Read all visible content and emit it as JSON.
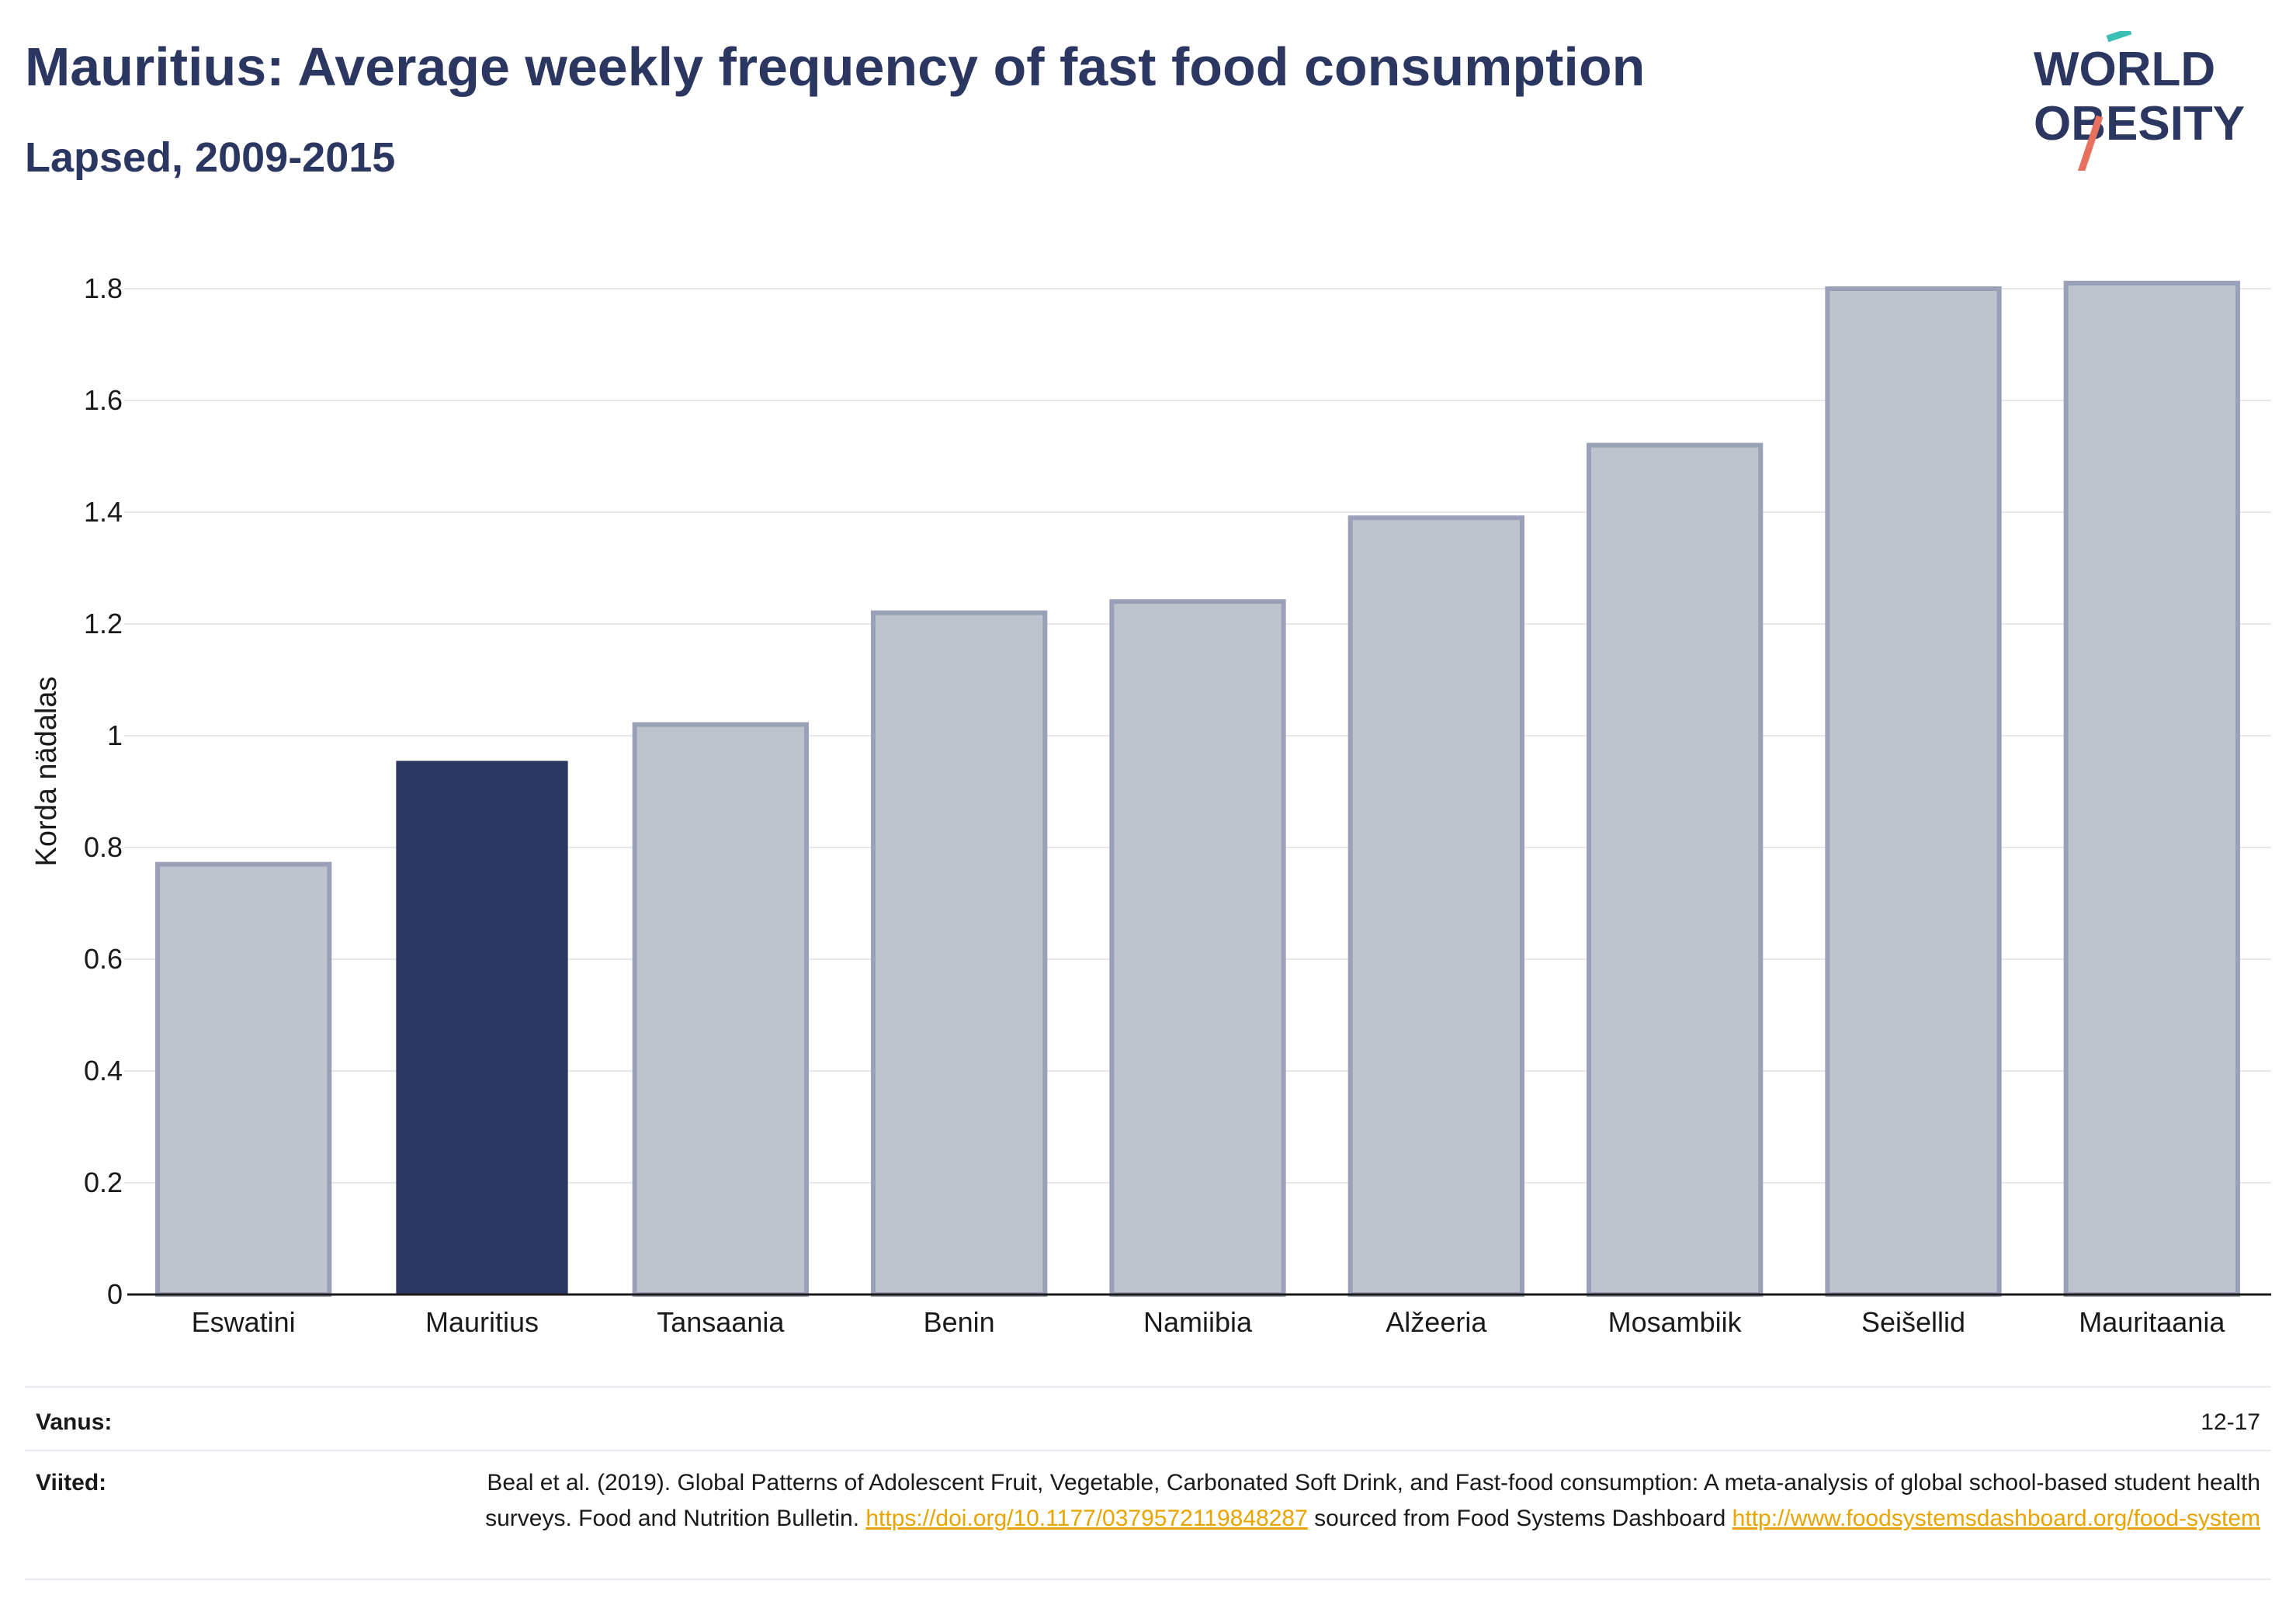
{
  "header": {
    "title": "Mauritius: Average weekly frequency of fast food consumption",
    "subtitle": "Lapsed, 2009-2015"
  },
  "logo": {
    "line1": "WORLD",
    "line2": "OBESITY",
    "accent_teal": "#3bbfb5",
    "accent_coral": "#e8705f"
  },
  "chart_data": {
    "type": "bar",
    "categories": [
      "Eswatini",
      "Mauritius",
      "Tansaania",
      "Benin",
      "Namiibia",
      "Alžeeria",
      "Mosambiik",
      "Seišellid",
      "Mauritaania"
    ],
    "values": [
      0.77,
      0.955,
      1.02,
      1.22,
      1.24,
      1.39,
      1.52,
      1.8,
      1.81
    ],
    "highlight": "Mauritius",
    "ylabel": "Korda nädalas",
    "xlabel": "",
    "ylim": [
      0,
      1.9
    ],
    "yticks": [
      0,
      0.2,
      0.4,
      0.6,
      0.8,
      1,
      1.2,
      1.4,
      1.6,
      1.8
    ],
    "ytick_labels": [
      "0",
      "0.2",
      "0.4",
      "0.6",
      "0.8",
      "1",
      "1.2",
      "1.4",
      "1.6",
      "1.8"
    ],
    "grid": true,
    "colors": {
      "highlight": "#2b3760",
      "other_fill": "#bfc3ce",
      "other_stroke": "#9aa0b8"
    }
  },
  "footer": {
    "age_label": "Vanus:",
    "age_value": "12-17",
    "ref_label": "Viited:",
    "ref_text_1": "Beal et al. (2019). Global Patterns of Adolescent Fruit, Vegetable, Carbonated Soft Drink, and Fast-food consumption: A meta-analysis of global school-based student health surveys. Food and Nutrition Bulletin. ",
    "ref_link_1": "https://doi.org/10.1177/0379572119848287",
    "ref_text_2": " sourced from Food Systems Dashboard ",
    "ref_link_2": "http://www.foodsystemsdashboard.org/food-system"
  }
}
